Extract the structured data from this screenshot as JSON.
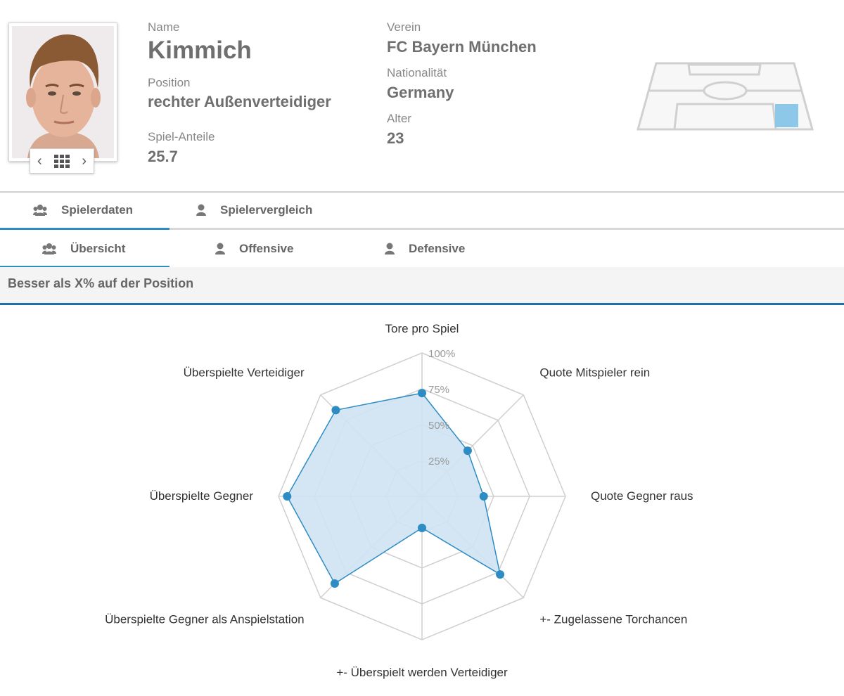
{
  "player": {
    "name_label": "Name",
    "name": "Kimmich",
    "position_label": "Position",
    "position": "rechter Außenverteidiger",
    "share_label": "Spiel-Anteile",
    "share": "25.7",
    "club_label": "Verein",
    "club": "FC Bayern München",
    "nationality_label": "Nationalität",
    "nationality": "Germany",
    "age_label": "Alter",
    "age": "23"
  },
  "photo_nav": {
    "prev": "‹",
    "next": "›"
  },
  "tabs_primary": [
    {
      "label": "Spielerdaten",
      "icon": "users-icon",
      "active": true
    },
    {
      "label": "Spielervergleich",
      "icon": "user-icon",
      "active": false
    }
  ],
  "tabs_secondary": [
    {
      "label": "Übersicht",
      "icon": "users-icon",
      "active": true
    },
    {
      "label": "Offensive",
      "icon": "user-icon",
      "active": false
    },
    {
      "label": "Defensive",
      "icon": "user-icon",
      "active": false
    }
  ],
  "section_title": "Besser als X% auf der Position",
  "colors": {
    "accent": "#2d8cc4",
    "fill": "#cfe3f2",
    "pitch_zone": "#8ec8e8"
  },
  "chart_data": {
    "type": "radar",
    "ticks": [
      "25%",
      "50%",
      "75%",
      "100%"
    ],
    "axes": [
      "Tore pro Spiel",
      "Quote Mitspieler rein",
      "Quote Gegner raus",
      "+- Zugelassene Torchancen",
      "+- Überspielt werden Verteidiger",
      "Überspielte Gegner als Anspielstation",
      "Überspielte Gegner",
      "Überspielte Verteidiger"
    ],
    "values": [
      72,
      45,
      43,
      77,
      22,
      86,
      94,
      85
    ],
    "rmax": 100
  }
}
